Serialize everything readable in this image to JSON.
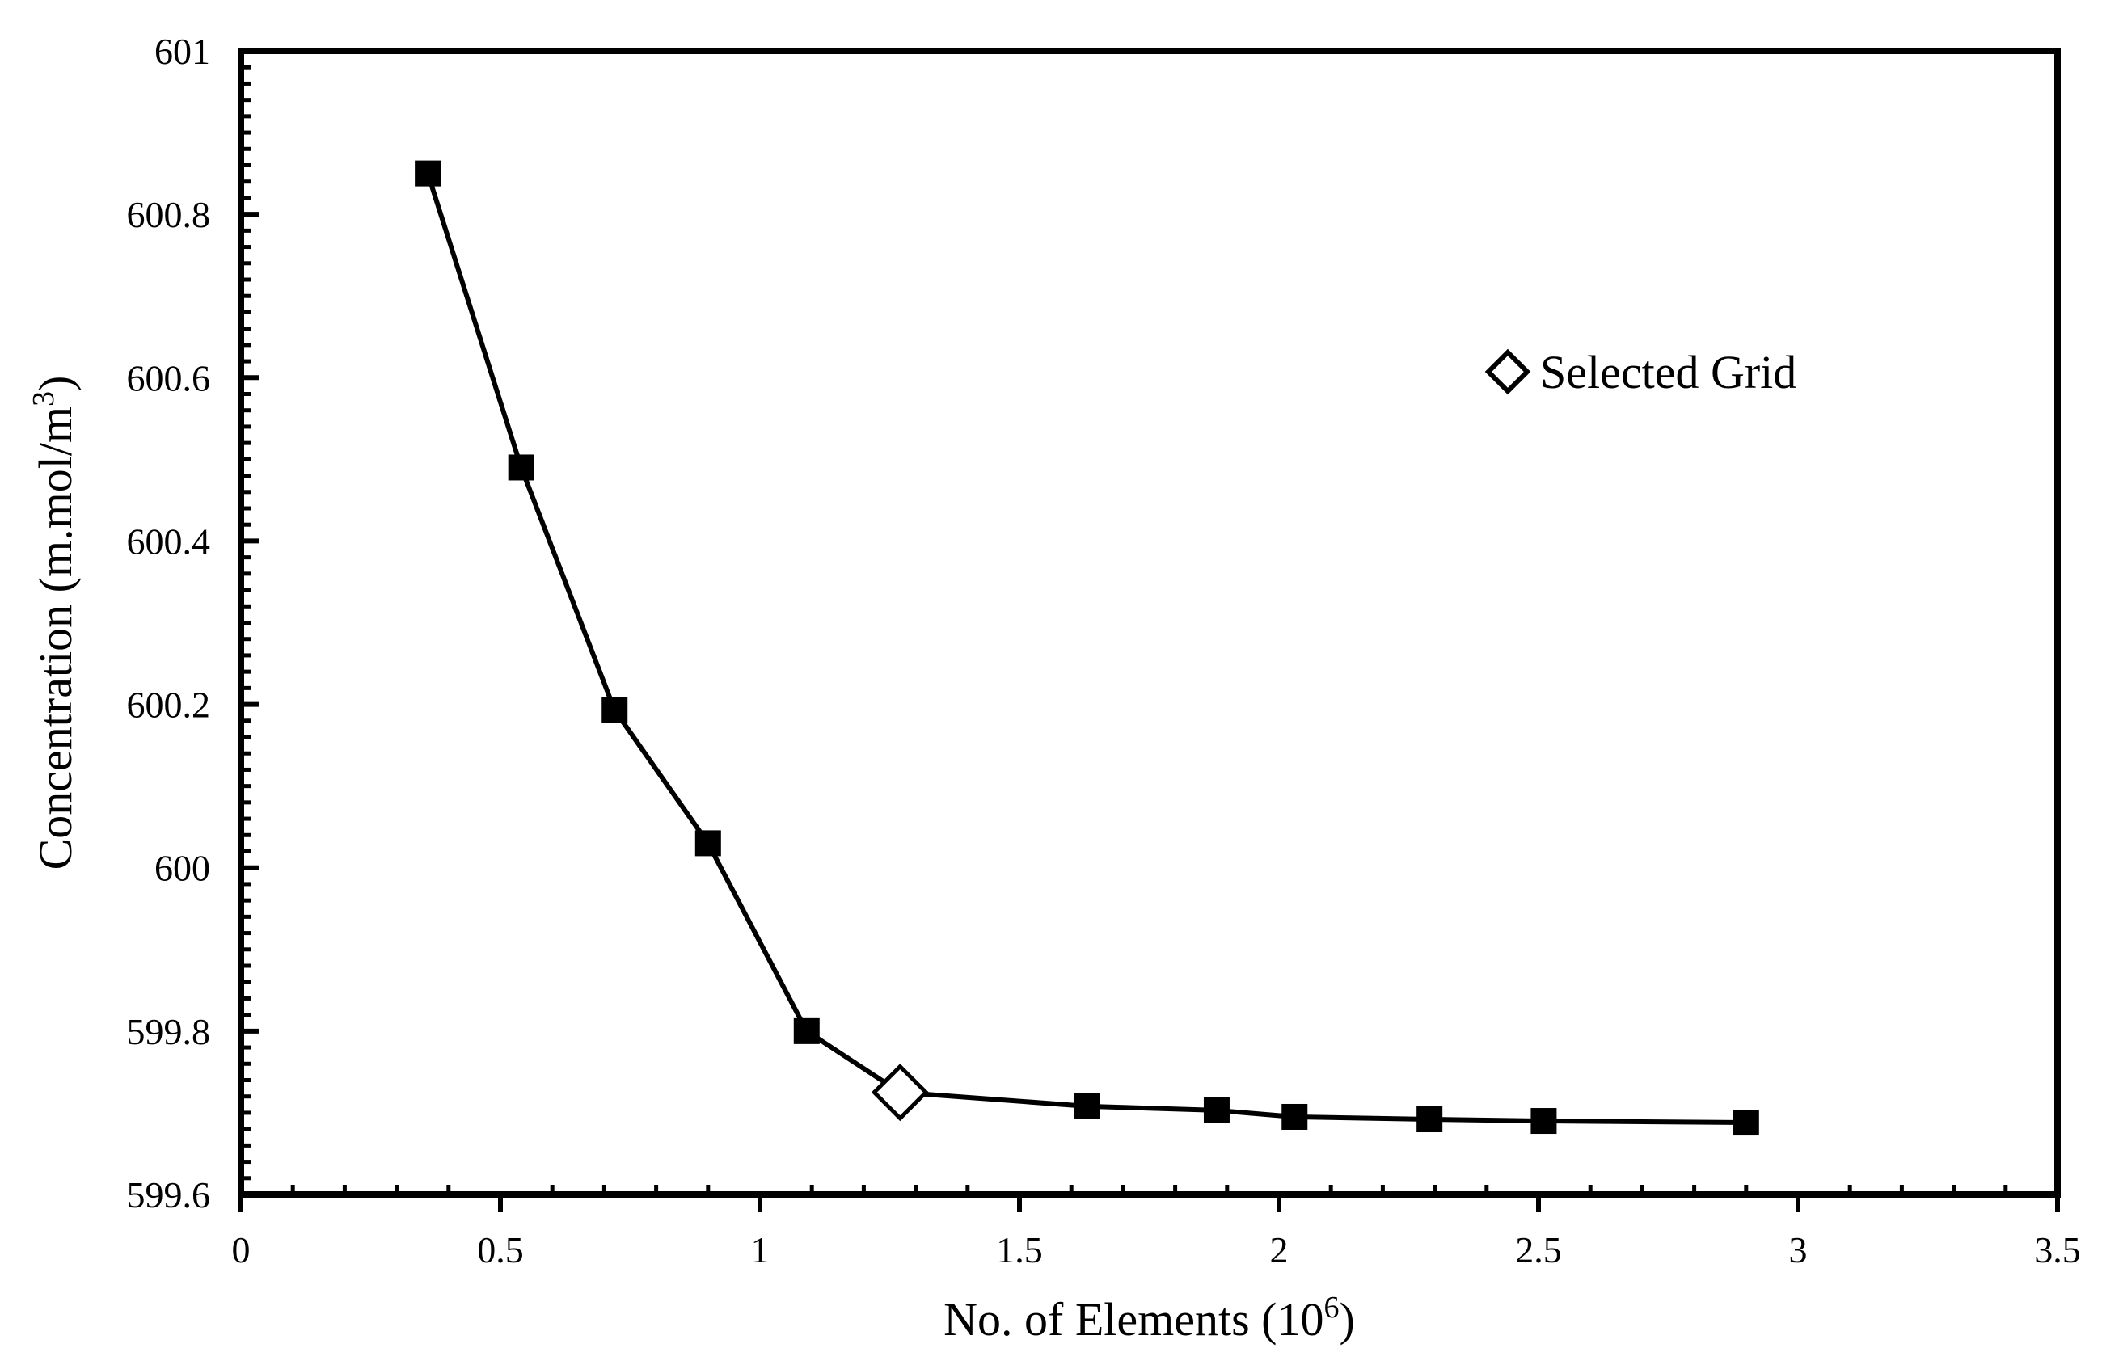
{
  "chart_data": {
    "type": "line",
    "xlabel": "No. of Elements (10",
    "xlabel_sup": "6",
    "xlabel_end": ")",
    "ylabel": "Concentration (m.mol/m",
    "ylabel_sup": "3",
    "ylabel_end": ")",
    "xlim": [
      0,
      3.5
    ],
    "ylim": [
      599.6,
      601
    ],
    "xticks": [
      0,
      0.5,
      1,
      1.5,
      2,
      2.5,
      3,
      3.5
    ],
    "xtick_labels": [
      "0",
      "0.5",
      "1",
      "1.5",
      "2",
      "2.5",
      "3",
      "3.5"
    ],
    "yticks": [
      599.6,
      599.8,
      600,
      600.2,
      600.4,
      600.6,
      600.8,
      601
    ],
    "ytick_labels": [
      "599.6",
      "599.8",
      "600",
      "600.2",
      "600.4",
      "600.6",
      "600.8",
      "601"
    ],
    "grid": false,
    "series": [
      {
        "x": [
          0.36,
          0.54,
          0.72,
          0.9,
          1.09,
          1.27,
          1.63,
          1.88,
          2.03,
          2.29,
          2.51,
          2.9
        ],
        "y": [
          600.85,
          600.49,
          600.193,
          600.03,
          599.8,
          599.725,
          599.708,
          599.703,
          599.695,
          599.692,
          599.69,
          599.688
        ],
        "color": "#000000",
        "marker": "square",
        "highlight_index": 5
      }
    ],
    "legend": {
      "label": "Selected Grid",
      "marker": "open-diamond",
      "placement": "upper-right"
    }
  }
}
